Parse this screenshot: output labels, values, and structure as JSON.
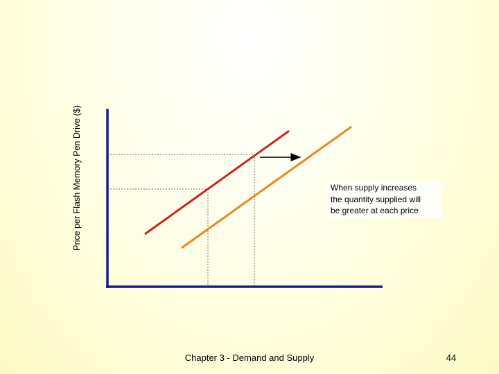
{
  "axis_label": "Price per Flash Memory Pen Drive ($)",
  "annotation": [
    "When supply increases",
    "the quantity supplied will",
    "be greater at each price"
  ],
  "footer": "Chapter 3 - Demand and Supply",
  "page_number": "44"
}
